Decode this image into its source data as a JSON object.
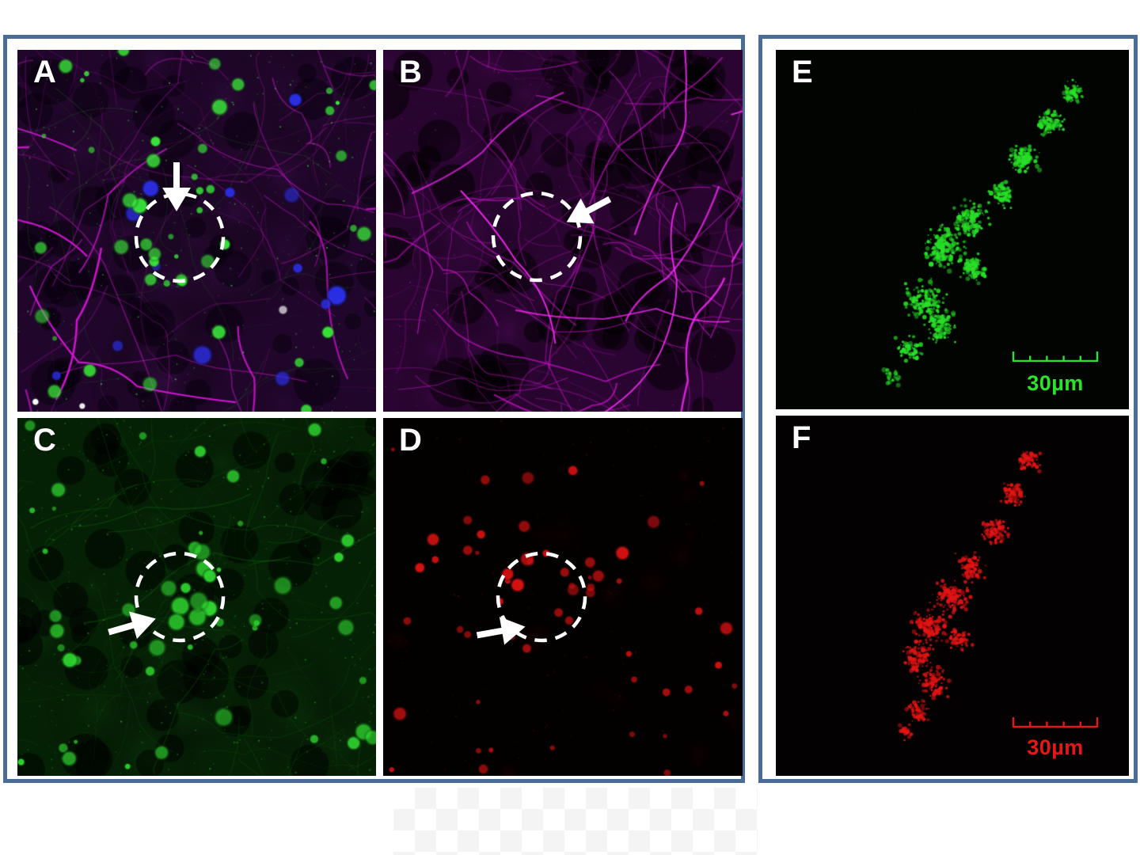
{
  "figure": {
    "frame_color": "#4a6c96",
    "page_background": "#ffffff",
    "annotation_color": "#ffffff"
  },
  "panels": {
    "A": {
      "label": "A",
      "channel": "merged",
      "colors": {
        "background": "#20062a",
        "magenta": "#d816d8",
        "green": "#39e839",
        "blue": "#2b2fe8",
        "white": "#ffffff"
      },
      "annotations": [
        "dashed-circle",
        "arrow-down"
      ]
    },
    "B": {
      "label": "B",
      "channel": "magenta",
      "colors": {
        "background": "#2a0531",
        "magenta": "#cf13cf"
      },
      "annotations": [
        "dashed-circle",
        "arrow-left-down"
      ]
    },
    "C": {
      "label": "C",
      "channel": "green",
      "colors": {
        "background": "#052105",
        "green": "#2fd42f"
      },
      "annotations": [
        "dashed-circle",
        "arrow-right-up"
      ]
    },
    "D": {
      "label": "D",
      "channel": "red",
      "colors": {
        "background": "#030000",
        "red": "#d31111"
      },
      "annotations": [
        "dashed-circle",
        "arrow-right-up"
      ]
    },
    "E": {
      "label": "E",
      "channel": "green",
      "colors": {
        "background": "#010401",
        "green": "#28e028"
      },
      "scale_bar": {
        "text": "30µm",
        "color": "#2be32b"
      }
    },
    "F": {
      "label": "F",
      "channel": "red",
      "colors": {
        "background": "#030101",
        "red": "#e31414"
      },
      "scale_bar": {
        "text": "30µm",
        "color": "#e81616"
      }
    }
  }
}
